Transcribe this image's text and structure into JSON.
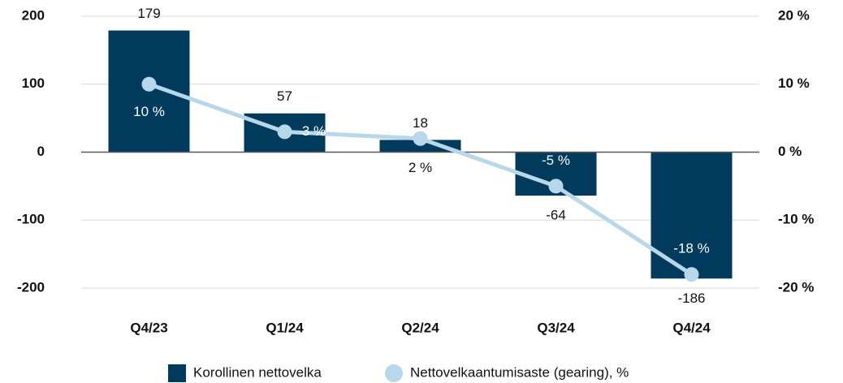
{
  "chart_data": {
    "type": "bar",
    "categories": [
      "Q4/23",
      "Q1/24",
      "Q2/24",
      "Q3/24",
      "Q4/24"
    ],
    "series": [
      {
        "name": "Korollinen nettovelka",
        "type": "bar",
        "color": "#003a5c",
        "values": [
          179,
          57,
          18,
          -64,
          -186
        ]
      },
      {
        "name": "Nettovelkaantumisaste (gearing), %",
        "type": "line",
        "axis": "y2",
        "color": "#b7d7ea",
        "values": [
          10,
          3,
          2,
          -5,
          -18
        ],
        "value_labels": [
          "10 %",
          "3 %",
          "2 %",
          "-5 %",
          "-18 %"
        ]
      }
    ],
    "ylim": [
      -200,
      200
    ],
    "yticks": [
      -200,
      -100,
      0,
      100,
      200
    ],
    "y2lim": [
      -20,
      20
    ],
    "y2ticks": [
      {
        "value": -20,
        "label": "-20 %"
      },
      {
        "value": -10,
        "label": "-10 %"
      },
      {
        "value": 0,
        "label": "0 %"
      },
      {
        "value": 10,
        "label": "10 %"
      },
      {
        "value": 20,
        "label": "20 %"
      }
    ],
    "grid": true,
    "legend": "bottom"
  }
}
